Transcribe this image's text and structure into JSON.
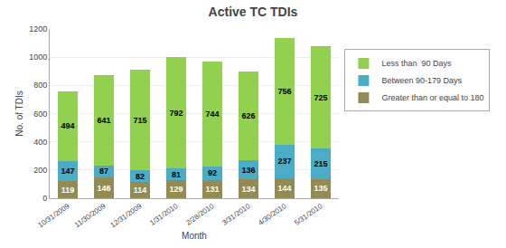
{
  "chart_data": {
    "type": "bar",
    "title": "Active TC TDIs",
    "xlabel": "Month",
    "ylabel": "No. of TDIs",
    "categories": [
      "10/31/2009",
      "11/30/2009",
      "12/31/2009",
      "1/31/2010",
      "2/28/2010",
      "3/31/2010",
      "4/30/2010",
      "5/31/2010"
    ],
    "series": [
      {
        "name": "Greater than or equal to 180",
        "color": "#948A54",
        "values": [
          119,
          146,
          114,
          129,
          131,
          134,
          144,
          135
        ]
      },
      {
        "name": "Between 90-179 Days",
        "color": "#4BACC6",
        "values": [
          147,
          87,
          82,
          81,
          92,
          136,
          237,
          215
        ]
      },
      {
        "name": "Less than  90 Days",
        "color": "#92D050",
        "values": [
          494,
          641,
          715,
          792,
          744,
          626,
          756,
          725
        ]
      }
    ],
    "stacked": true,
    "data_labels": true,
    "ylim": [
      0,
      1200
    ],
    "yticks": [
      0,
      200,
      400,
      600,
      800,
      1000,
      1200
    ],
    "grid": true,
    "legend": "upper right"
  }
}
